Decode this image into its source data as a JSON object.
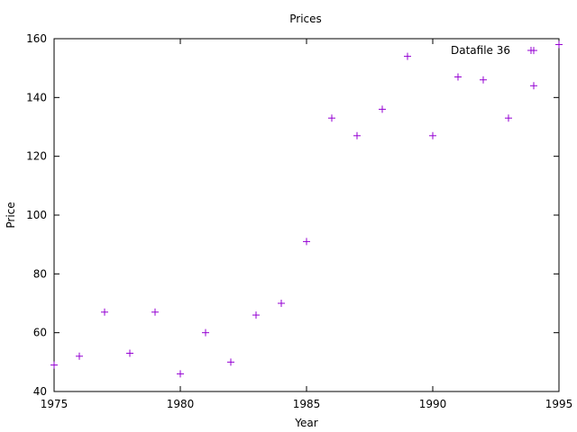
{
  "chart_data": {
    "type": "scatter",
    "title": "Prices",
    "xlabel": "Year",
    "ylabel": "Price",
    "xlim": [
      1975,
      1995
    ],
    "ylim": [
      40,
      160
    ],
    "xticks": [
      1975,
      1980,
      1985,
      1990,
      1995
    ],
    "xtick_labels": [
      "1975",
      "1980",
      "1985",
      "1990",
      "1995"
    ],
    "yticks": [
      40,
      60,
      80,
      100,
      120,
      140,
      160
    ],
    "ytick_labels": [
      "40",
      "60",
      "80",
      "100",
      "120",
      "140",
      "160"
    ],
    "grid": false,
    "legend_position": "top-right",
    "series": [
      {
        "name": "Datafile 36",
        "color": "#9400d3",
        "marker": "plus",
        "x": [
          1975,
          1976,
          1977,
          1978,
          1979,
          1980,
          1981,
          1982,
          1983,
          1984,
          1985,
          1986,
          1987,
          1988,
          1989,
          1990,
          1991,
          1992,
          1993,
          1994,
          1994,
          1995
        ],
        "y": [
          49,
          52,
          67,
          53,
          67,
          46,
          60,
          50,
          66,
          70,
          91,
          133,
          127,
          136,
          154,
          127,
          147,
          146,
          133,
          144,
          156,
          158
        ]
      }
    ]
  }
}
